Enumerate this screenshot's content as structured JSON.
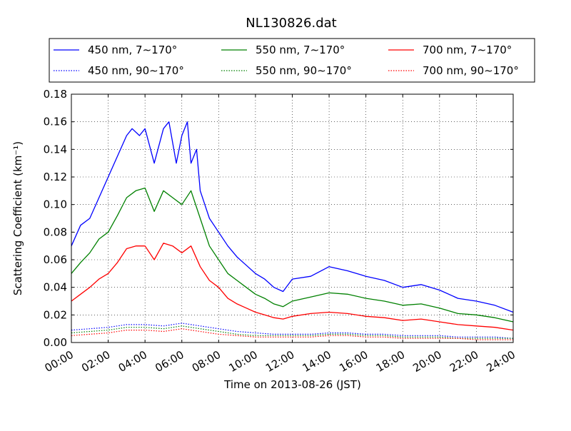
{
  "chart_data": {
    "type": "line",
    "title": "NL130826.dat",
    "xlabel": "Time on 2013-08-26 (JST)",
    "ylabel": "Scattering Coefficient (km⁻¹)",
    "x_ticks": [
      "00:00",
      "02:00",
      "04:00",
      "06:00",
      "08:00",
      "10:00",
      "12:00",
      "14:00",
      "16:00",
      "18:00",
      "20:00",
      "22:00",
      "24:00"
    ],
    "y_ticks": [
      "0.00",
      "0.02",
      "0.04",
      "0.06",
      "0.08",
      "0.10",
      "0.12",
      "0.14",
      "0.16",
      "0.18"
    ],
    "xlim": [
      0,
      24
    ],
    "ylim": [
      0,
      0.18
    ],
    "grid": true,
    "legend_position": "top",
    "series": [
      {
        "name": "450 nm, 7∼170°",
        "color": "#0000ff",
        "style": "solid",
        "x": [
          0,
          0.5,
          1,
          1.5,
          2,
          2.5,
          3,
          3.3,
          3.7,
          4,
          4.5,
          5,
          5.3,
          5.7,
          6,
          6.3,
          6.5,
          6.8,
          7,
          7.5,
          8,
          8.5,
          9,
          9.5,
          10,
          10.5,
          11,
          11.5,
          12,
          13,
          14,
          15,
          16,
          17,
          18,
          19,
          20,
          21,
          22,
          23,
          24
        ],
        "y": [
          0.07,
          0.085,
          0.09,
          0.105,
          0.12,
          0.135,
          0.15,
          0.155,
          0.15,
          0.155,
          0.13,
          0.155,
          0.16,
          0.13,
          0.15,
          0.16,
          0.13,
          0.14,
          0.11,
          0.09,
          0.08,
          0.07,
          0.062,
          0.056,
          0.05,
          0.046,
          0.04,
          0.037,
          0.046,
          0.048,
          0.055,
          0.052,
          0.048,
          0.045,
          0.04,
          0.042,
          0.038,
          0.032,
          0.03,
          0.027,
          0.022
        ]
      },
      {
        "name": "550 nm, 7∼170°",
        "color": "#008000",
        "style": "solid",
        "x": [
          0,
          0.5,
          1,
          1.5,
          2,
          2.5,
          3,
          3.5,
          4,
          4.5,
          5,
          5.5,
          6,
          6.5,
          7,
          7.5,
          8,
          8.5,
          9,
          9.5,
          10,
          10.5,
          11,
          11.5,
          12,
          13,
          14,
          15,
          16,
          17,
          18,
          19,
          20,
          21,
          22,
          23,
          24
        ],
        "y": [
          0.05,
          0.058,
          0.065,
          0.075,
          0.08,
          0.092,
          0.105,
          0.11,
          0.112,
          0.095,
          0.11,
          0.105,
          0.1,
          0.11,
          0.09,
          0.07,
          0.06,
          0.05,
          0.045,
          0.04,
          0.035,
          0.032,
          0.028,
          0.026,
          0.03,
          0.033,
          0.036,
          0.035,
          0.032,
          0.03,
          0.027,
          0.028,
          0.025,
          0.021,
          0.02,
          0.018,
          0.015
        ]
      },
      {
        "name": "700 nm, 7∼170°",
        "color": "#ff0000",
        "style": "solid",
        "x": [
          0,
          0.5,
          1,
          1.5,
          2,
          2.5,
          3,
          3.5,
          4,
          4.5,
          5,
          5.5,
          6,
          6.5,
          7,
          7.5,
          8,
          8.5,
          9,
          9.5,
          10,
          10.5,
          11,
          11.5,
          12,
          13,
          14,
          15,
          16,
          17,
          18,
          19,
          20,
          21,
          22,
          23,
          24
        ],
        "y": [
          0.03,
          0.035,
          0.04,
          0.046,
          0.05,
          0.058,
          0.068,
          0.07,
          0.07,
          0.06,
          0.072,
          0.07,
          0.065,
          0.07,
          0.055,
          0.045,
          0.04,
          0.032,
          0.028,
          0.025,
          0.022,
          0.02,
          0.018,
          0.017,
          0.019,
          0.021,
          0.022,
          0.021,
          0.019,
          0.018,
          0.016,
          0.017,
          0.015,
          0.013,
          0.012,
          0.011,
          0.009
        ]
      },
      {
        "name": "450 nm, 90∼170°",
        "color": "#0000ff",
        "style": "dotted",
        "x": [
          0,
          1,
          2,
          3,
          4,
          5,
          6,
          7,
          8,
          9,
          10,
          11,
          12,
          13,
          14,
          15,
          16,
          17,
          18,
          19,
          20,
          21,
          22,
          23,
          24
        ],
        "y": [
          0.009,
          0.01,
          0.011,
          0.013,
          0.013,
          0.012,
          0.014,
          0.012,
          0.01,
          0.008,
          0.007,
          0.006,
          0.006,
          0.006,
          0.007,
          0.007,
          0.006,
          0.006,
          0.005,
          0.005,
          0.005,
          0.004,
          0.004,
          0.004,
          0.003
        ]
      },
      {
        "name": "550 nm, 90∼170°",
        "color": "#008000",
        "style": "dotted",
        "x": [
          0,
          1,
          2,
          3,
          4,
          5,
          6,
          7,
          8,
          9,
          10,
          11,
          12,
          13,
          14,
          15,
          16,
          17,
          18,
          19,
          20,
          21,
          22,
          23,
          24
        ],
        "y": [
          0.007,
          0.008,
          0.009,
          0.011,
          0.011,
          0.01,
          0.012,
          0.01,
          0.008,
          0.006,
          0.005,
          0.005,
          0.005,
          0.005,
          0.006,
          0.006,
          0.005,
          0.005,
          0.004,
          0.004,
          0.004,
          0.003,
          0.003,
          0.003,
          0.003
        ]
      },
      {
        "name": "700 nm, 90∼170°",
        "color": "#ff0000",
        "style": "dotted",
        "x": [
          0,
          1,
          2,
          3,
          4,
          5,
          6,
          7,
          8,
          9,
          10,
          11,
          12,
          13,
          14,
          15,
          16,
          17,
          18,
          19,
          20,
          21,
          22,
          23,
          24
        ],
        "y": [
          0.005,
          0.006,
          0.007,
          0.009,
          0.009,
          0.008,
          0.01,
          0.008,
          0.006,
          0.005,
          0.004,
          0.004,
          0.004,
          0.004,
          0.005,
          0.005,
          0.004,
          0.004,
          0.003,
          0.003,
          0.003,
          0.003,
          0.002,
          0.002,
          0.002
        ]
      }
    ]
  }
}
